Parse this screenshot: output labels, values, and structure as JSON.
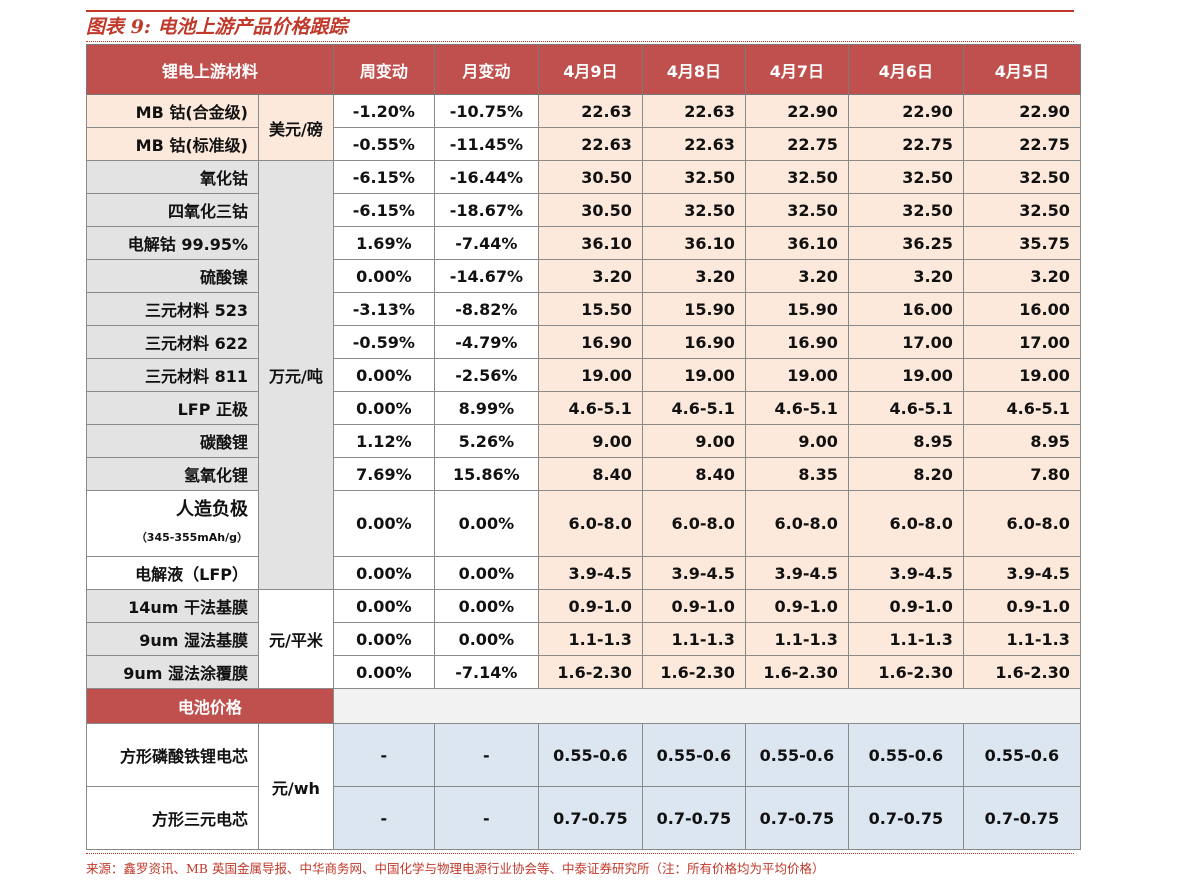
{
  "title": "图表 9:  电池上游产品价格跟踪",
  "headers": [
    "锂电上游材料",
    "周变动",
    "月变动",
    "4月9日",
    "4月8日",
    "4月7日",
    "4月6日",
    "4月5日"
  ],
  "units": {
    "usd": "美元/磅",
    "wan": "万元/吨",
    "sqm": "元/平米",
    "wh": "元/wh"
  },
  "rows": [
    {
      "name": "MB 钴(合金级)",
      "week": "-1.20%",
      "month": "-10.75%",
      "vals": [
        "22.63",
        "22.63",
        "22.90",
        "22.90",
        "22.90"
      ]
    },
    {
      "name": "MB 钴(标准级)",
      "week": "-0.55%",
      "month": "-11.45%",
      "vals": [
        "22.63",
        "22.63",
        "22.75",
        "22.75",
        "22.75"
      ]
    },
    {
      "name": "氧化钴",
      "week": "-6.15%",
      "month": "-16.44%",
      "vals": [
        "30.50",
        "32.50",
        "32.50",
        "32.50",
        "32.50"
      ]
    },
    {
      "name": "四氧化三钴",
      "week": "-6.15%",
      "month": "-18.67%",
      "vals": [
        "30.50",
        "32.50",
        "32.50",
        "32.50",
        "32.50"
      ]
    },
    {
      "name": "电解钴 99.95%",
      "week": "1.69%",
      "month": "-7.44%",
      "vals": [
        "36.10",
        "36.10",
        "36.10",
        "36.25",
        "35.75"
      ]
    },
    {
      "name": "硫酸镍",
      "week": "0.00%",
      "month": "-14.67%",
      "vals": [
        "3.20",
        "3.20",
        "3.20",
        "3.20",
        "3.20"
      ]
    },
    {
      "name": "三元材料 523",
      "week": "-3.13%",
      "month": "-8.82%",
      "vals": [
        "15.50",
        "15.90",
        "15.90",
        "16.00",
        "16.00"
      ]
    },
    {
      "name": "三元材料 622",
      "week": "-0.59%",
      "month": "-4.79%",
      "vals": [
        "16.90",
        "16.90",
        "16.90",
        "17.00",
        "17.00"
      ]
    },
    {
      "name": "三元材料 811",
      "week": "0.00%",
      "month": "-2.56%",
      "vals": [
        "19.00",
        "19.00",
        "19.00",
        "19.00",
        "19.00"
      ]
    },
    {
      "name": "LFP 正极",
      "week": "0.00%",
      "month": "8.99%",
      "vals": [
        "4.6-5.1",
        "4.6-5.1",
        "4.6-5.1",
        "4.6-5.1",
        "4.6-5.1"
      ]
    },
    {
      "name": "碳酸锂",
      "week": "1.12%",
      "month": "5.26%",
      "vals": [
        "9.00",
        "9.00",
        "9.00",
        "8.95",
        "8.95"
      ]
    },
    {
      "name": "氢氧化锂",
      "week": "7.69%",
      "month": "15.86%",
      "vals": [
        "8.40",
        "8.40",
        "8.35",
        "8.20",
        "7.80"
      ]
    },
    {
      "name": "人造负极",
      "sub": "（345-355mAh/g）",
      "week": "0.00%",
      "month": "0.00%",
      "vals": [
        "6.0-8.0",
        "6.0-8.0",
        "6.0-8.0",
        "6.0-8.0",
        "6.0-8.0"
      ]
    },
    {
      "name": "电解液（LFP）",
      "week": "0.00%",
      "month": "0.00%",
      "vals": [
        "3.9-4.5",
        "3.9-4.5",
        "3.9-4.5",
        "3.9-4.5",
        "3.9-4.5"
      ]
    },
    {
      "name": "14um 干法基膜",
      "week": "0.00%",
      "month": "0.00%",
      "vals": [
        "0.9-1.0",
        "0.9-1.0",
        "0.9-1.0",
        "0.9-1.0",
        "0.9-1.0"
      ]
    },
    {
      "name": "9um 湿法基膜",
      "week": "0.00%",
      "month": "0.00%",
      "vals": [
        "1.1-1.3",
        "1.1-1.3",
        "1.1-1.3",
        "1.1-1.3",
        "1.1-1.3"
      ]
    },
    {
      "name": "9um 湿法涂覆膜",
      "week": "0.00%",
      "month": "-7.14%",
      "vals": [
        "1.6-2.30",
        "1.6-2.30",
        "1.6-2.30",
        "1.6-2.30",
        "1.6-2.30"
      ]
    }
  ],
  "battery_section": "电池价格",
  "battery_rows": [
    {
      "name": "方形磷酸铁锂电芯",
      "week": "-",
      "month": "-",
      "vals": [
        "0.55-0.6",
        "0.55-0.6",
        "0.55-0.6",
        "0.55-0.6",
        "0.55-0.6"
      ]
    },
    {
      "name": "方形三元电芯",
      "week": "-",
      "month": "-",
      "vals": [
        "0.7-0.75",
        "0.7-0.75",
        "0.7-0.75",
        "0.7-0.75",
        "0.7-0.75"
      ]
    }
  ],
  "source": "来源：鑫罗资讯、MB 英国金属导报、中华商务网、中国化学与物理电源行业协会等、中泰证券研究所（注：所有价格均为平均价格）",
  "colors": {
    "header_red": "#c0504d",
    "peach": "#fde9dc",
    "grey": "#e3e3e3",
    "blue": "#dce6f1",
    "up_red": "#e02020",
    "down_green": "#1a9e3a"
  }
}
